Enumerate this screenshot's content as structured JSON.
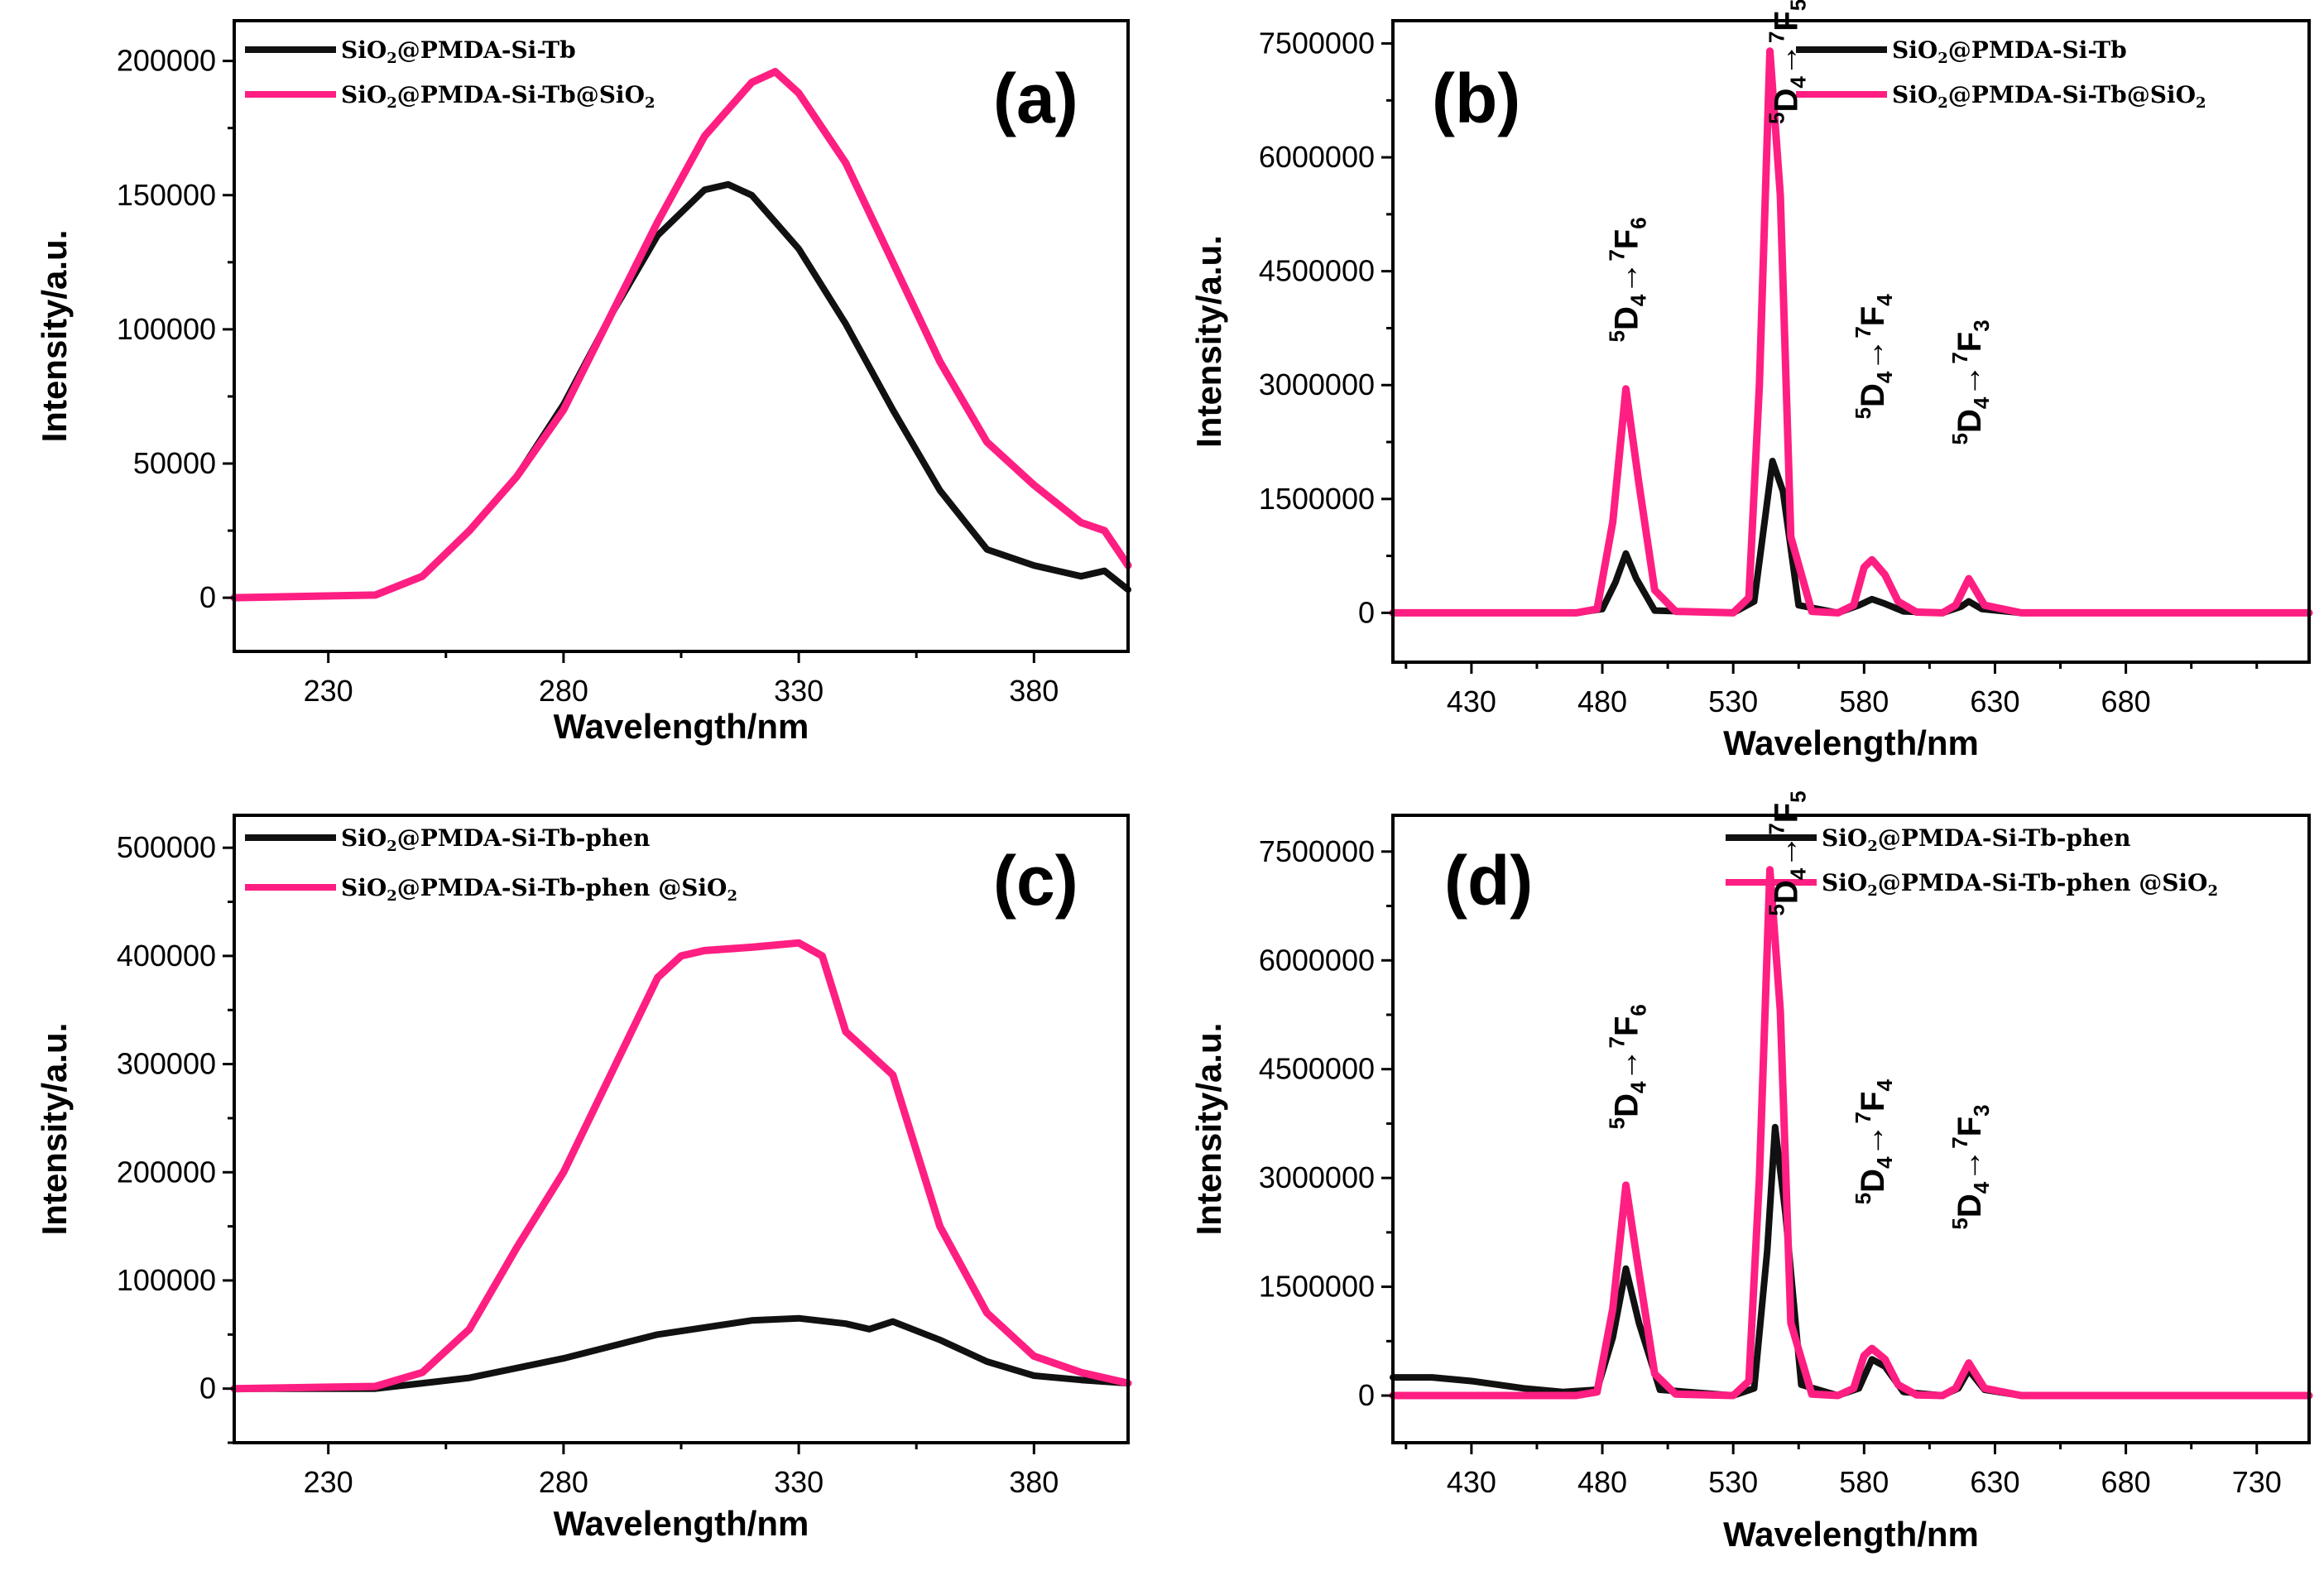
{
  "colors": {
    "black_series": "#111111",
    "pink_series": "#ff1e82"
  },
  "chart_data": [
    {
      "id": "a",
      "type": "line",
      "panel_label": "(a)",
      "xlabel": "Wavelength/nm",
      "ylabel": "Intensity/a.u.",
      "xlim": [
        210,
        400
      ],
      "ylim": [
        -20000,
        215000
      ],
      "xticks": [
        230,
        280,
        330,
        380
      ],
      "yticks": [
        0,
        50000,
        100000,
        150000,
        200000
      ],
      "legend_position": "top-left",
      "series": [
        {
          "name": "SiO₂@PMDA-Si-Tb",
          "legend_text": "SiO",
          "legend_sub": "2",
          "legend_tail": "@PMDA-Si-Tb",
          "legend_sub2": "",
          "color": "#111111",
          "x": [
            210,
            240,
            250,
            260,
            270,
            280,
            290,
            300,
            310,
            315,
            320,
            330,
            340,
            350,
            360,
            370,
            380,
            390,
            395,
            400
          ],
          "y": [
            0,
            1000,
            8000,
            25000,
            45000,
            72000,
            105000,
            135000,
            152000,
            154000,
            150000,
            130000,
            102000,
            70000,
            40000,
            18000,
            12000,
            8000,
            10000,
            3000
          ]
        },
        {
          "name": "SiO₂@PMDA-Si-Tb@SiO₂",
          "legend_text": "SiO",
          "legend_sub": "2",
          "legend_tail": "@PMDA-Si-Tb@SiO",
          "legend_sub2": "2",
          "color": "#ff1e82",
          "x": [
            210,
            240,
            250,
            260,
            270,
            280,
            290,
            300,
            310,
            320,
            325,
            330,
            340,
            350,
            360,
            370,
            380,
            390,
            395,
            400
          ],
          "y": [
            0,
            1000,
            8000,
            25000,
            45000,
            70000,
            105000,
            140000,
            172000,
            192000,
            196000,
            188000,
            162000,
            125000,
            88000,
            58000,
            42000,
            28000,
            25000,
            12000
          ]
        }
      ]
    },
    {
      "id": "b",
      "type": "line",
      "panel_label": "(b)",
      "xlabel": "Wavelength/nm",
      "ylabel": "Intensity/a.u.",
      "xlim": [
        400,
        750
      ],
      "ylim": [
        -650000,
        7800000
      ],
      "xticks": [
        430,
        480,
        530,
        580,
        630,
        680
      ],
      "yticks": [
        0,
        1500000,
        3000000,
        4500000,
        6000000,
        7500000
      ],
      "legend_position": "top-right",
      "series": [
        {
          "name": "SiO₂@PMDA-Si-Tb",
          "legend_text": "SiO",
          "legend_sub": "2",
          "legend_tail": "@PMDA-Si-Tb",
          "legend_sub2": "",
          "color": "#111111",
          "x": [
            400,
            470,
            480,
            485,
            489,
            493,
            500,
            530,
            538,
            542,
            545,
            549,
            555,
            570,
            578,
            583,
            588,
            595,
            610,
            617,
            620,
            625,
            640,
            750
          ],
          "y": [
            0,
            0,
            50000,
            400000,
            780000,
            450000,
            30000,
            0,
            150000,
            1200000,
            2000000,
            1600000,
            100000,
            0,
            100000,
            180000,
            120000,
            20000,
            0,
            80000,
            150000,
            50000,
            0,
            0
          ]
        },
        {
          "name": "SiO₂@PMDA-Si-Tb@SiO₂",
          "legend_text": "SiO",
          "legend_sub": "2",
          "legend_tail": "@PMDA-Si-Tb@SiO",
          "legend_sub2": "2",
          "color": "#ff1e82",
          "x": [
            400,
            470,
            478,
            484,
            489,
            494,
            500,
            508,
            530,
            536,
            540,
            544,
            548,
            552,
            560,
            570,
            576,
            580,
            583,
            588,
            593,
            600,
            610,
            615,
            620,
            626,
            640,
            750
          ],
          "y": [
            0,
            0,
            50000,
            1200000,
            2950000,
            1700000,
            300000,
            20000,
            0,
            200000,
            3000000,
            7400000,
            5500000,
            1000000,
            20000,
            0,
            100000,
            600000,
            700000,
            500000,
            150000,
            10000,
            0,
            100000,
            450000,
            100000,
            0,
            0
          ]
        }
      ],
      "annotations": [
        {
          "label_lead": "5",
          "label_d": "D",
          "label_sub": "4",
          "arrow": "→",
          "label_sup": "7",
          "label_f": "F",
          "label_fsub": "6",
          "x": 489
        },
        {
          "label_lead": "5",
          "label_d": "D",
          "label_sub": "4",
          "arrow": "→",
          "label_sup": "7",
          "label_f": "F",
          "label_fsub": "5",
          "x": 550
        },
        {
          "label_lead": "5",
          "label_d": "D",
          "label_sub": "4",
          "arrow": "→",
          "label_sup": "7",
          "label_f": "F",
          "label_fsub": "4",
          "x": 583
        },
        {
          "label_lead": "5",
          "label_d": "D",
          "label_sub": "4",
          "arrow": "→",
          "label_sup": "7",
          "label_f": "F",
          "label_fsub": "3",
          "x": 620
        }
      ]
    },
    {
      "id": "c",
      "type": "line",
      "panel_label": "(c)",
      "xlabel": "Wavelength/nm",
      "ylabel": "Intensity/a.u.",
      "xlim": [
        210,
        400
      ],
      "ylim": [
        -50000,
        530000
      ],
      "xticks": [
        230,
        280,
        330,
        380
      ],
      "yticks": [
        0,
        100000,
        200000,
        300000,
        400000,
        500000
      ],
      "legend_position": "top-left",
      "series": [
        {
          "name": "SiO₂@PMDA-Si-Tb-phen",
          "legend_text": "SiO",
          "legend_sub": "2",
          "legend_tail": "@PMDA-Si-Tb-phen",
          "legend_sub2": "",
          "color": "#111111",
          "x": [
            210,
            240,
            260,
            280,
            300,
            320,
            330,
            340,
            345,
            350,
            360,
            370,
            380,
            390,
            400
          ],
          "y": [
            0,
            0,
            10000,
            28000,
            50000,
            63000,
            65000,
            60000,
            55000,
            62000,
            45000,
            25000,
            12000,
            8000,
            5000
          ]
        },
        {
          "name": "SiO₂@PMDA-Si-Tb-phen @SiO₂",
          "legend_text": "SiO",
          "legend_sub": "2",
          "legend_tail": "@PMDA-Si-Tb-phen @SiO",
          "legend_sub2": "2",
          "color": "#ff1e82",
          "x": [
            210,
            240,
            250,
            260,
            270,
            280,
            290,
            300,
            305,
            310,
            320,
            330,
            335,
            340,
            345,
            350,
            355,
            360,
            370,
            380,
            390,
            400
          ],
          "y": [
            0,
            2000,
            15000,
            55000,
            130000,
            200000,
            290000,
            380000,
            400000,
            405000,
            408000,
            412000,
            400000,
            330000,
            310000,
            290000,
            220000,
            150000,
            70000,
            30000,
            15000,
            5000
          ]
        }
      ]
    },
    {
      "id": "d",
      "type": "line",
      "panel_label": "(d)",
      "xlabel": "Wavelength/nm",
      "ylabel": "Intensity/a.u.",
      "xlim": [
        400,
        750
      ],
      "ylim": [
        -650000,
        8000000
      ],
      "xticks": [
        430,
        480,
        530,
        580,
        630,
        680,
        730
      ],
      "yticks": [
        0,
        1500000,
        3000000,
        4500000,
        6000000,
        7500000
      ],
      "legend_position": "top-right",
      "series": [
        {
          "name": "SiO₂@PMDA-Si-Tb-phen",
          "legend_text": "SiO",
          "legend_sub": "2",
          "legend_tail": "@PMDA-Si-Tb-phen",
          "legend_sub2": "",
          "color": "#111111",
          "x": [
            400,
            415,
            430,
            450,
            465,
            478,
            484,
            489,
            494,
            502,
            530,
            538,
            543,
            546,
            550,
            556,
            570,
            578,
            583,
            588,
            595,
            610,
            616,
            620,
            626,
            640,
            750
          ],
          "y": [
            250000,
            250000,
            200000,
            100000,
            50000,
            80000,
            800000,
            1750000,
            1000000,
            80000,
            0,
            100000,
            2000000,
            3700000,
            2500000,
            150000,
            0,
            100000,
            500000,
            400000,
            50000,
            0,
            100000,
            350000,
            80000,
            0,
            0
          ]
        },
        {
          "name": "SiO₂@PMDA-Si-Tb-phen @SiO₂",
          "legend_text": "SiO",
          "legend_sub": "2",
          "legend_tail": "@PMDA-Si-Tb-phen @SiO",
          "legend_sub2": "2",
          "color": "#ff1e82",
          "x": [
            400,
            470,
            478,
            484,
            489,
            494,
            500,
            508,
            530,
            536,
            540,
            544,
            548,
            552,
            560,
            570,
            576,
            580,
            583,
            588,
            593,
            600,
            610,
            615,
            620,
            626,
            640,
            750
          ],
          "y": [
            0,
            0,
            50000,
            1200000,
            2900000,
            1700000,
            300000,
            20000,
            0,
            200000,
            3000000,
            7250000,
            5300000,
            1000000,
            20000,
            0,
            100000,
            550000,
            650000,
            500000,
            150000,
            10000,
            0,
            100000,
            450000,
            100000,
            0,
            0
          ]
        }
      ],
      "annotations": [
        {
          "label_lead": "5",
          "label_d": "D",
          "label_sub": "4",
          "arrow": "→",
          "label_sup": "7",
          "label_f": "F",
          "label_fsub": "6",
          "x": 489
        },
        {
          "label_lead": "5",
          "label_d": "D",
          "label_sub": "4",
          "arrow": "→",
          "label_sup": "7",
          "label_f": "F",
          "label_fsub": "5",
          "x": 550
        },
        {
          "label_lead": "5",
          "label_d": "D",
          "label_sub": "4",
          "arrow": "→",
          "label_sup": "7",
          "label_f": "F",
          "label_fsub": "4",
          "x": 583
        },
        {
          "label_lead": "5",
          "label_d": "D",
          "label_sub": "4",
          "arrow": "→",
          "label_sup": "7",
          "label_f": "F",
          "label_fsub": "3",
          "x": 620
        }
      ]
    }
  ]
}
